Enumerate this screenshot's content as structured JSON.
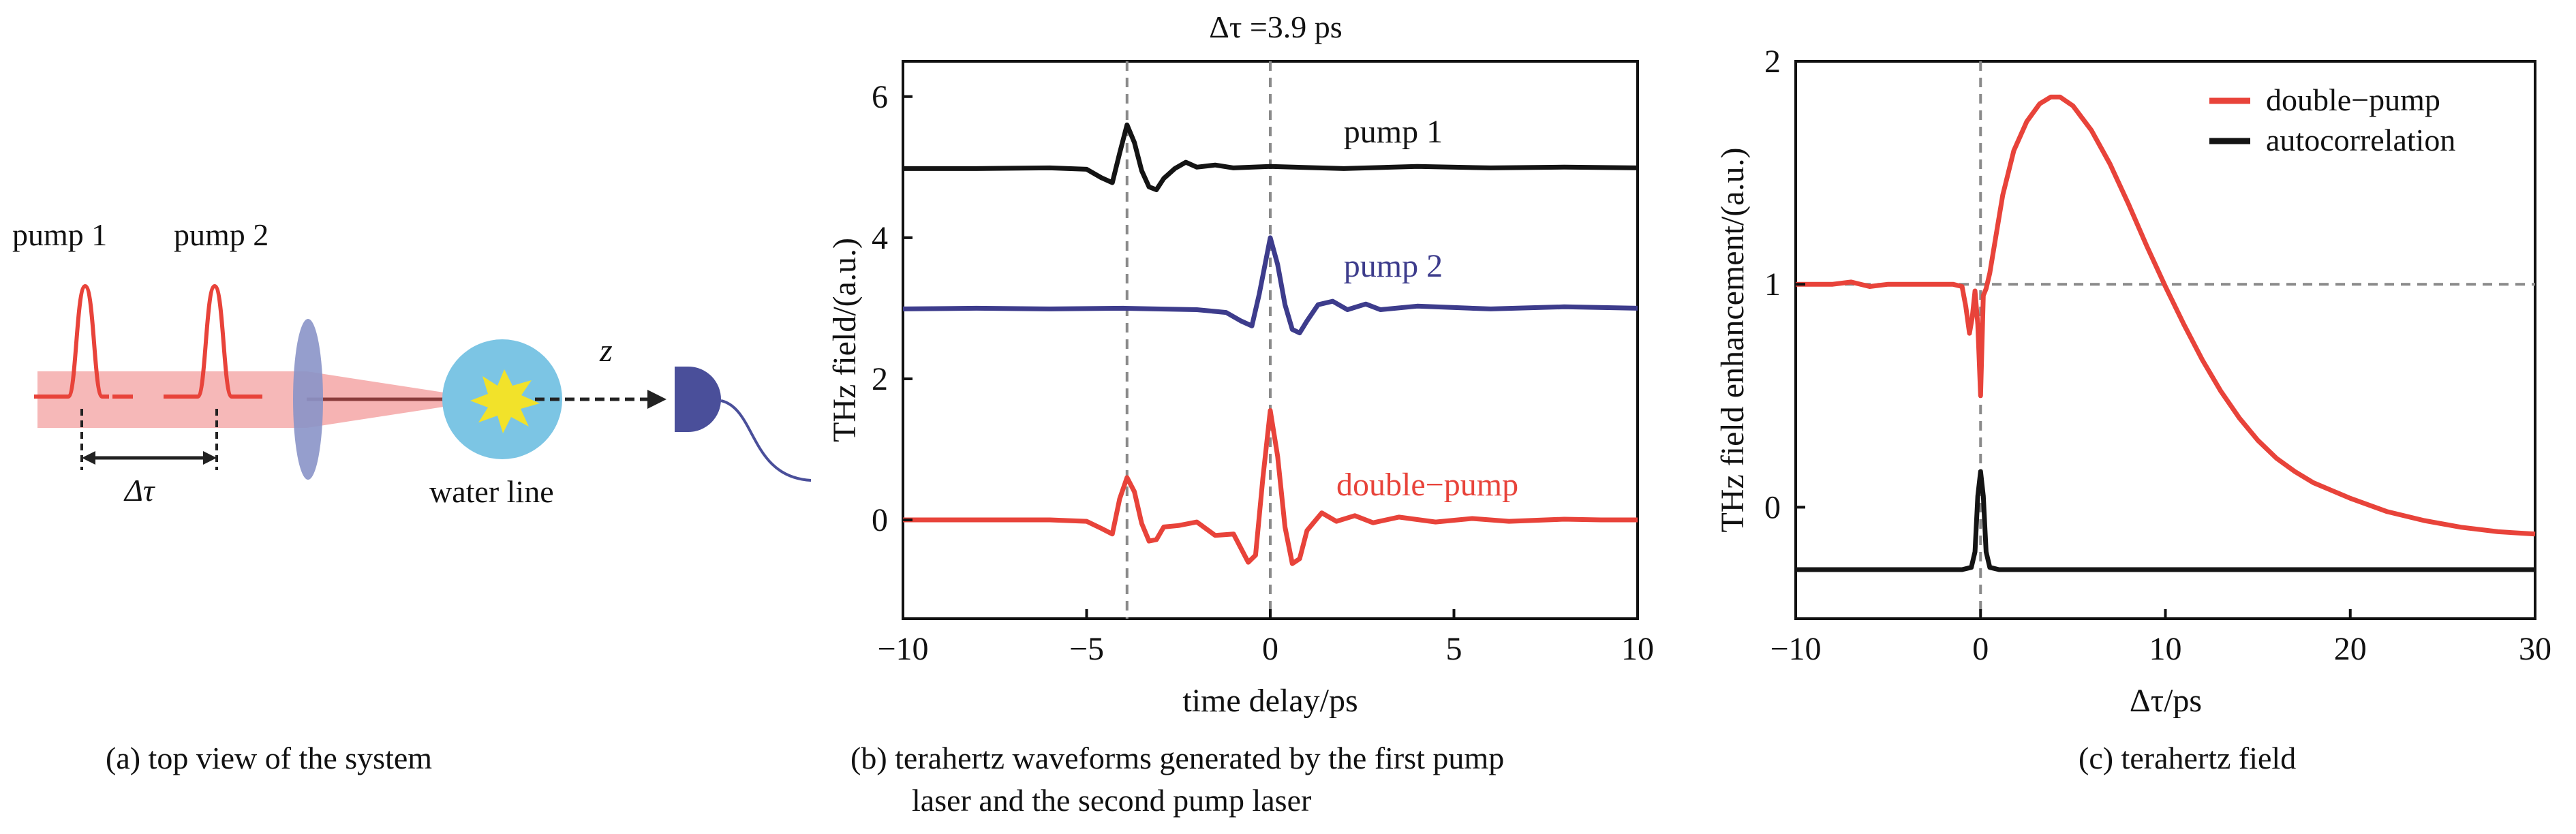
{
  "panel_a": {
    "label_pump1": "pump 1",
    "label_pump2": "pump 2",
    "label_delta": "Δτ",
    "label_water": "water line",
    "label_z": "z",
    "caption": "(a) top view of the system"
  },
  "colors": {
    "red": "#e8433a",
    "blue": "#3d3c8c",
    "black": "#141414",
    "beam": "#f4a6a6",
    "lens": "#8a94c8",
    "water": "#7cc5e4",
    "spark": "#f2e22a",
    "detector": "#4a4f9a",
    "guide": "#8a8a8a"
  },
  "chart_data": [
    {
      "type": "line",
      "panel": "b",
      "title": "Δτ =3.9 ps",
      "xlabel": "time delay/ps",
      "ylabel": "THz field/(a.u.)",
      "xlim": [
        -10,
        10
      ],
      "ylim": [
        -1.4,
        6.5
      ],
      "xticks": [
        -10,
        -5,
        0,
        5,
        10
      ],
      "xtick_labels": [
        "−10",
        "−5",
        "0",
        "5",
        "10"
      ],
      "yticks": [
        0,
        2,
        4,
        6
      ],
      "ytick_labels": [
        "0",
        "2",
        "4",
        "6"
      ],
      "guides_x": [
        -3.9,
        0
      ],
      "grid": false,
      "caption_line1": "(b) terahertz waveforms generated by the first pump",
      "caption_line2": "laser and the second pump laser",
      "series": [
        {
          "name": "pump 1",
          "color": "#141414",
          "x": [
            -10,
            -8,
            -6,
            -5,
            -4.6,
            -4.3,
            -4.1,
            -3.9,
            -3.7,
            -3.5,
            -3.3,
            -3.1,
            -2.9,
            -2.6,
            -2.3,
            -2,
            -1.5,
            -1,
            0,
            2,
            4,
            6,
            8,
            10
          ],
          "y": [
            4.98,
            4.98,
            4.99,
            4.97,
            4.85,
            4.78,
            5.2,
            5.6,
            5.35,
            4.95,
            4.72,
            4.68,
            4.84,
            4.98,
            5.07,
            5.0,
            5.03,
            4.99,
            5.01,
            4.98,
            5.01,
            4.99,
            5.0,
            4.99
          ]
        },
        {
          "name": "pump 2",
          "color": "#3d3c8c",
          "x": [
            -10,
            -8,
            -6,
            -4,
            -2,
            -1.2,
            -0.8,
            -0.5,
            -0.3,
            0,
            0.2,
            0.4,
            0.6,
            0.8,
            1.0,
            1.3,
            1.7,
            2.1,
            2.6,
            3,
            4,
            6,
            8,
            10
          ],
          "y": [
            2.99,
            3.0,
            2.99,
            3.0,
            2.98,
            2.94,
            2.82,
            2.75,
            3.2,
            4.0,
            3.62,
            3.05,
            2.7,
            2.65,
            2.82,
            3.05,
            3.1,
            2.98,
            3.06,
            2.98,
            3.03,
            2.99,
            3.02,
            3.0
          ]
        },
        {
          "name": "double−pump",
          "color": "#e8433a",
          "x": [
            -10,
            -8,
            -6,
            -5,
            -4.6,
            -4.3,
            -4.1,
            -3.9,
            -3.7,
            -3.5,
            -3.3,
            -3.1,
            -2.9,
            -2.5,
            -2.0,
            -1.5,
            -1.0,
            -0.6,
            -0.4,
            -0.2,
            0,
            0.2,
            0.4,
            0.6,
            0.8,
            1.0,
            1.4,
            1.8,
            2.3,
            2.8,
            3.5,
            4.5,
            5.5,
            6.5,
            8,
            9,
            10
          ],
          "y": [
            0.0,
            0.0,
            0.0,
            -0.02,
            -0.12,
            -0.2,
            0.3,
            0.6,
            0.4,
            -0.05,
            -0.3,
            -0.28,
            -0.1,
            -0.08,
            -0.03,
            -0.22,
            -0.2,
            -0.6,
            -0.5,
            0.6,
            1.55,
            0.9,
            -0.1,
            -0.62,
            -0.55,
            -0.15,
            0.1,
            -0.02,
            0.06,
            -0.04,
            0.04,
            -0.03,
            0.02,
            -0.02,
            0.01,
            0.0,
            0.0
          ]
        }
      ],
      "series_labels": [
        {
          "text": "pump 1",
          "x": 2.0,
          "y": 5.35
        },
        {
          "text": "pump 2",
          "x": 2.0,
          "y": 3.45
        },
        {
          "text": "double−pump",
          "x": 1.8,
          "y": 0.35
        }
      ]
    },
    {
      "type": "line",
      "panel": "c",
      "xlabel": "Δτ/ps",
      "ylabel": "THz field enhancement/(a.u.)",
      "xlim": [
        -10,
        30
      ],
      "ylim": [
        -0.5,
        2.0
      ],
      "xticks": [
        -10,
        0,
        10,
        20,
        30
      ],
      "xtick_labels": [
        "−10",
        "0",
        "10",
        "20",
        "30"
      ],
      "yticks": [
        0,
        1,
        2
      ],
      "ytick_labels": [
        "0",
        "1",
        "2"
      ],
      "guides_x": [
        0
      ],
      "guides_y": [
        1
      ],
      "grid": false,
      "legend": "top-right",
      "caption": "(c) terahertz field",
      "series": [
        {
          "name": "double−pump",
          "color": "#e8433a",
          "x": [
            -10,
            -9,
            -8,
            -7,
            -6,
            -5,
            -4,
            -3,
            -2,
            -1.5,
            -1,
            -0.8,
            -0.6,
            -0.45,
            -0.3,
            -0.15,
            0,
            0.15,
            0.3,
            0.5,
            0.8,
            1.2,
            1.8,
            2.5,
            3.2,
            3.8,
            4.3,
            5,
            6,
            7,
            8,
            9,
            10,
            11,
            12,
            13,
            14,
            15,
            16,
            17,
            18,
            20,
            22,
            24,
            26,
            28,
            30
          ],
          "y": [
            1.0,
            1.0,
            1.0,
            1.01,
            0.99,
            1.0,
            1.0,
            1.0,
            1.0,
            1.0,
            0.99,
            0.9,
            0.78,
            0.85,
            0.97,
            0.82,
            0.5,
            0.95,
            0.98,
            1.05,
            1.2,
            1.4,
            1.6,
            1.73,
            1.81,
            1.84,
            1.84,
            1.8,
            1.69,
            1.54,
            1.36,
            1.17,
            0.99,
            0.82,
            0.66,
            0.52,
            0.4,
            0.3,
            0.22,
            0.16,
            0.11,
            0.04,
            -0.02,
            -0.06,
            -0.09,
            -0.11,
            -0.12
          ]
        },
        {
          "name": "autocorrelation",
          "color": "#141414",
          "x": [
            -10,
            -5,
            -1,
            -0.5,
            -0.3,
            -0.15,
            0,
            0.15,
            0.3,
            0.5,
            1,
            5,
            10,
            20,
            30
          ],
          "y": [
            -0.28,
            -0.28,
            -0.28,
            -0.27,
            -0.2,
            0.05,
            0.16,
            0.05,
            -0.2,
            -0.27,
            -0.28,
            -0.28,
            -0.28,
            -0.28,
            -0.28
          ]
        }
      ]
    }
  ]
}
